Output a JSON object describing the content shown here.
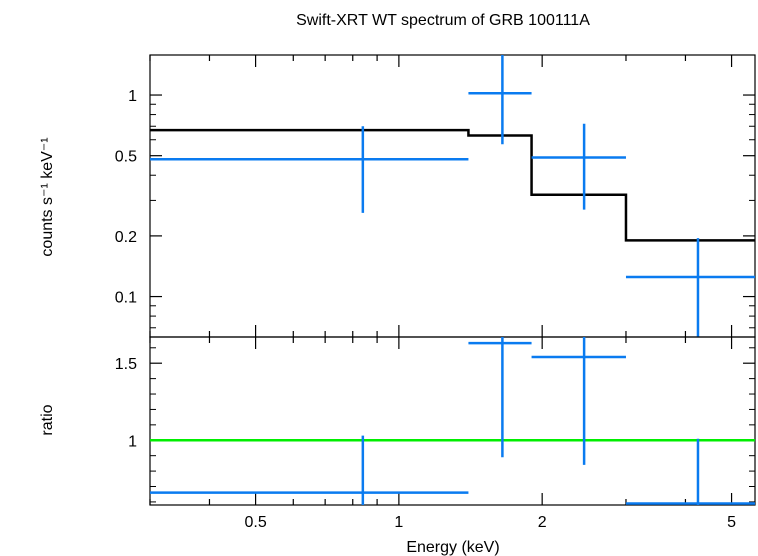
{
  "chart_data": {
    "title": "Swift-XRT WT spectrum of GRB 100111A",
    "type": "scatter",
    "xlabel": "Energy (keV)",
    "xscale": "log",
    "xlim": [
      0.3,
      5.6
    ],
    "xticks": [
      {
        "value": 0.5,
        "label": "0.5"
      },
      {
        "value": 1,
        "label": "1"
      },
      {
        "value": 2,
        "label": "2"
      },
      {
        "value": 5,
        "label": "5"
      }
    ],
    "colors": {
      "data": "#0a7bf0",
      "model": "#000000",
      "unity": "#00ee00",
      "frame": "#000000"
    },
    "panels": [
      {
        "id": "spectrum",
        "ylabel": "counts s⁻¹ keV⁻¹",
        "yscale": "log",
        "ylim": [
          0.063,
          1.58
        ],
        "yticks": [
          {
            "value": 1,
            "label": "1"
          },
          {
            "value": 0.5,
            "label": "0.5"
          },
          {
            "value": 0.2,
            "label": "0.2"
          },
          {
            "value": 0.1,
            "label": "0.1"
          }
        ],
        "data_points": [
          {
            "x": 0.84,
            "xlo": 0.3,
            "xhi": 1.4,
            "y": 0.48,
            "ylo": 0.26,
            "yhi": 0.7
          },
          {
            "x": 1.65,
            "xlo": 1.4,
            "xhi": 1.9,
            "y": 1.02,
            "ylo": 0.57,
            "yhi": 1.6
          },
          {
            "x": 2.45,
            "xlo": 1.9,
            "xhi": 3.0,
            "y": 0.49,
            "ylo": 0.27,
            "yhi": 0.72
          },
          {
            "x": 4.25,
            "xlo": 3.0,
            "xhi": 5.6,
            "y": 0.125,
            "ylo": 0.063,
            "yhi": 0.195
          }
        ],
        "model_steps": [
          {
            "xlo": 0.3,
            "xhi": 1.4,
            "y": 0.67
          },
          {
            "xlo": 1.4,
            "xhi": 1.9,
            "y": 0.63
          },
          {
            "xlo": 1.9,
            "xhi": 3.0,
            "y": 0.32
          },
          {
            "xlo": 3.0,
            "xhi": 5.6,
            "y": 0.19
          }
        ]
      },
      {
        "id": "ratio",
        "ylabel": "ratio",
        "yscale": "linear",
        "ylim": [
          0.58,
          1.67
        ],
        "yticks": [
          {
            "value": 1.5,
            "label": "1.5"
          },
          {
            "value": 1,
            "label": "1"
          }
        ],
        "reference_line": 1,
        "data_points": [
          {
            "x": 0.84,
            "xlo": 0.3,
            "xhi": 1.4,
            "y": 0.66,
            "ylo": 0.58,
            "yhi": 1.03
          },
          {
            "x": 1.65,
            "xlo": 1.4,
            "xhi": 1.9,
            "y": 1.63,
            "ylo": 0.89,
            "yhi": 1.67
          },
          {
            "x": 2.45,
            "xlo": 1.9,
            "xhi": 3.0,
            "y": 1.54,
            "ylo": 0.84,
            "yhi": 1.67
          },
          {
            "x": 4.25,
            "xlo": 3.0,
            "xhi": 5.6,
            "y": 0.59,
            "ylo": 0.58,
            "yhi": 1.01
          }
        ]
      }
    ]
  }
}
